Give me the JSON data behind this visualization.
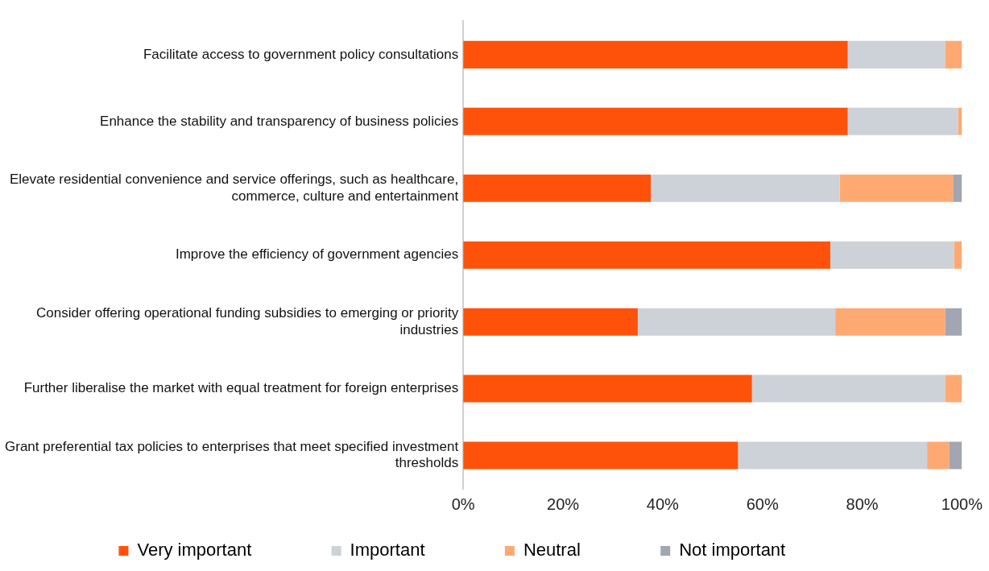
{
  "chart_data": {
    "type": "bar",
    "orientation": "horizontal",
    "stacked": true,
    "categories": [
      "Facilitate access to government policy consultations",
      "Enhance the stability and transparency of business policies",
      "Elevate residential convenience and service offerings, such as healthcare, commerce, culture and entertainment",
      "Improve the efficiency of government agencies",
      "Consider offering operational funding subsidies to emerging or priority industries",
      "Further liberalise the market with equal treatment for foreign enterprises",
      "Grant preferential tax policies to enterprises that meet specified investment thresholds"
    ],
    "series": [
      {
        "name": "Very important",
        "color": "#fe520a",
        "values": [
          77.1,
          77.1,
          37.6,
          73.6,
          35.0,
          57.9,
          55.1
        ]
      },
      {
        "name": "Important",
        "color": "#cdd1d8",
        "values": [
          19.5,
          22.1,
          37.9,
          24.8,
          39.6,
          38.7,
          37.9
        ]
      },
      {
        "name": "Neutral",
        "color": "#ffa972",
        "values": [
          3.4,
          0.8,
          22.7,
          1.6,
          22.0,
          3.4,
          4.4
        ]
      },
      {
        "name": "Not important",
        "color": "#a1a6b2",
        "values": [
          null,
          null,
          1.8,
          null,
          3.4,
          null,
          2.6
        ]
      }
    ],
    "xlim": [
      0,
      100
    ],
    "xticks": [
      {
        "value": 0,
        "label": "0%"
      },
      {
        "value": 20,
        "label": "20%"
      },
      {
        "value": 40,
        "label": "40%"
      },
      {
        "value": 60,
        "label": "60%"
      },
      {
        "value": 80,
        "label": "80%"
      },
      {
        "value": 100,
        "label": "100%"
      }
    ],
    "grid": false,
    "legend": "bottom"
  }
}
